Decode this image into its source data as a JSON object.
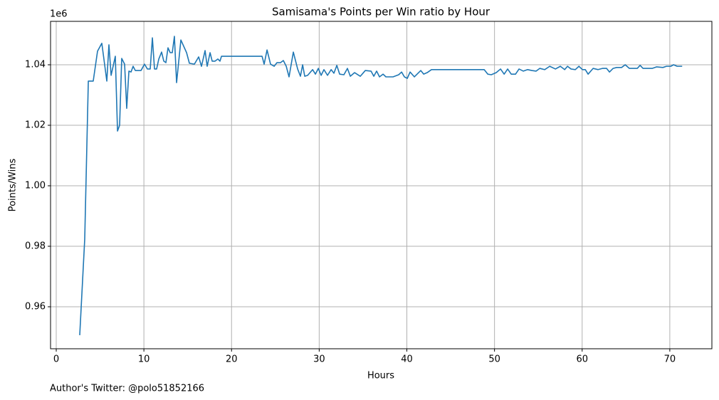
{
  "chart_data": {
    "type": "line",
    "title": "Samisama's Points per Win ratio by Hour",
    "x_label": "Hours",
    "y_label": "Points/Wins",
    "y_offset_label": "1e6",
    "footer": "Author's Twitter: @polo51852166",
    "color": "#1f77b4",
    "grid": true,
    "xlim": [
      -0.65,
      74.8
    ],
    "ylim": [
      0.94612,
      1.05435
    ],
    "xticks": [
      0,
      10,
      20,
      30,
      40,
      50,
      60,
      70
    ],
    "yticks": [
      0.96,
      0.98,
      {
        "value": 1,
        "label": "1.00"
      },
      1.02,
      1.04
    ],
    "x": [
      2.68,
      3.25,
      3.66,
      4.22,
      4.71,
      5.2,
      5.77,
      6.01,
      6.26,
      6.74,
      6.99,
      7.23,
      7.47,
      7.8,
      8.04,
      8.29,
      8.53,
      8.77,
      9.02,
      9.67,
      10.07,
      10.4,
      10.72,
      10.97,
      11.21,
      11.45,
      11.7,
      12.02,
      12.27,
      12.51,
      12.75,
      13.0,
      13.24,
      13.48,
      13.73,
      14.22,
      14.87,
      15.19,
      15.76,
      16.25,
      16.57,
      16.98,
      17.22,
      17.55,
      17.79,
      18.12,
      18.44,
      18.68,
      18.85,
      23.48,
      23.72,
      24.05,
      24.45,
      24.86,
      25.18,
      25.59,
      25.91,
      26.24,
      26.56,
      27.05,
      27.54,
      27.86,
      28.11,
      28.35,
      28.68,
      29.25,
      29.57,
      29.9,
      30.22,
      30.54,
      30.95,
      31.36,
      31.68,
      32.01,
      32.33,
      32.82,
      33.22,
      33.55,
      34.04,
      34.69,
      35.26,
      35.91,
      36.23,
      36.55,
      36.88,
      37.29,
      37.61,
      38.42,
      39.07,
      39.4,
      39.72,
      40.05,
      40.37,
      40.86,
      41.27,
      41.59,
      41.92,
      42.32,
      42.81,
      48.82,
      49.23,
      49.63,
      50.2,
      50.69,
      51.1,
      51.5,
      51.91,
      52.4,
      52.8,
      53.29,
      53.78,
      54.26,
      54.75,
      55.16,
      55.73,
      56.3,
      56.95,
      57.51,
      58.0,
      58.33,
      58.73,
      59.22,
      59.63,
      60.03,
      60.36,
      60.68,
      61.25,
      61.82,
      62.31,
      62.79,
      63.12,
      63.53,
      63.93,
      64.5,
      64.91,
      65.39,
      66.29,
      66.61,
      66.94,
      67.99,
      68.48,
      69.21,
      69.62,
      70.11,
      70.43,
      70.84,
      71.41
    ],
    "values": [
      0.9506,
      0.9824,
      1.0346,
      1.0346,
      1.0445,
      1.0471,
      1.0346,
      1.0466,
      1.0365,
      1.0428,
      1.0181,
      1.02,
      1.0421,
      1.0402,
      1.0256,
      1.0379,
      1.0376,
      1.0395,
      1.0381,
      1.0381,
      1.0402,
      1.0386,
      1.0386,
      1.0489,
      1.0386,
      1.0386,
      1.0419,
      1.0442,
      1.0412,
      1.0407,
      1.0456,
      1.044,
      1.044,
      1.0494,
      1.0341,
      1.0482,
      1.044,
      1.0405,
      1.0402,
      1.0426,
      1.0395,
      1.0447,
      1.0395,
      1.044,
      1.0412,
      1.0412,
      1.0419,
      1.0412,
      1.0428,
      1.0428,
      1.0402,
      1.0449,
      1.0402,
      1.0395,
      1.0407,
      1.0407,
      1.0414,
      1.0395,
      1.036,
      1.0442,
      1.0386,
      1.0362,
      1.04,
      1.0362,
      1.0365,
      1.0384,
      1.0369,
      1.0388,
      1.0365,
      1.0384,
      1.0365,
      1.0384,
      1.0372,
      1.0398,
      1.0369,
      1.0367,
      1.0388,
      1.0362,
      1.0374,
      1.0362,
      1.0381,
      1.0379,
      1.0362,
      1.0379,
      1.036,
      1.0369,
      1.036,
      1.036,
      1.0367,
      1.0376,
      1.036,
      1.0355,
      1.0376,
      1.036,
      1.0372,
      1.0381,
      1.0369,
      1.0374,
      1.0384,
      1.0384,
      1.0369,
      1.0367,
      1.0374,
      1.0386,
      1.0369,
      1.0386,
      1.0369,
      1.0369,
      1.0386,
      1.0379,
      1.0384,
      1.0381,
      1.0379,
      1.0388,
      1.0384,
      1.0395,
      1.0386,
      1.0395,
      1.0384,
      1.0395,
      1.0386,
      1.0384,
      1.0395,
      1.0384,
      1.0384,
      1.0369,
      1.0388,
      1.0384,
      1.0388,
      1.0388,
      1.0376,
      1.0388,
      1.0391,
      1.0391,
      1.04,
      1.0388,
      1.0388,
      1.0398,
      1.0388,
      1.0388,
      1.0393,
      1.0391,
      1.0395,
      1.0395,
      1.04,
      1.0395,
      1.0395
    ]
  }
}
